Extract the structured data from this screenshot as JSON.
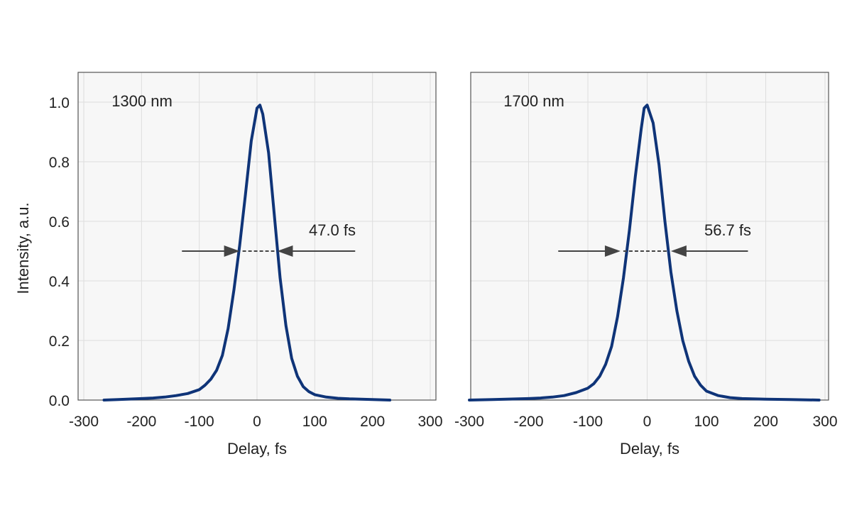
{
  "y_axis_label": "Intensity, a.u.",
  "chart_data": [
    {
      "type": "line",
      "label": "1300 nm",
      "xlabel": "Delay, fs",
      "ylabel": "Intensity, a.u.",
      "xlim": [
        -300,
        300
      ],
      "ylim": [
        0,
        1.1
      ],
      "xticks": [
        -300,
        -200,
        -100,
        0,
        100,
        200,
        300
      ],
      "xtick_labels": [
        "-300",
        "-200",
        "-100",
        "0",
        "100",
        "200",
        "300"
      ],
      "yticks": [
        0,
        0.2,
        0.4,
        0.6,
        0.8,
        1.0
      ],
      "ytick_labels": [
        "0.0",
        "0.2",
        "0.4",
        "0.6",
        "0.8",
        "1.0"
      ],
      "grid": true,
      "series": [
        {
          "color": "#0f3478",
          "x": [
            -265,
            -240,
            -200,
            -180,
            -160,
            -140,
            -120,
            -100,
            -90,
            -80,
            -70,
            -60,
            -50,
            -40,
            -30,
            -20,
            -10,
            0,
            5,
            10,
            20,
            30,
            40,
            50,
            60,
            70,
            80,
            90,
            100,
            120,
            140,
            160,
            180,
            200,
            230
          ],
          "y": [
            0.0,
            0.002,
            0.005,
            0.007,
            0.01,
            0.015,
            0.022,
            0.035,
            0.05,
            0.07,
            0.1,
            0.15,
            0.24,
            0.37,
            0.52,
            0.69,
            0.87,
            0.98,
            0.99,
            0.96,
            0.83,
            0.62,
            0.41,
            0.25,
            0.14,
            0.08,
            0.045,
            0.028,
            0.018,
            0.01,
            0.006,
            0.004,
            0.003,
            0.002,
            0.0
          ]
        }
      ],
      "annotation": {
        "text": "47.0 fs",
        "fwhm_left": -30,
        "fwhm_right": 35,
        "level": 0.5,
        "arrow_from_left": -130,
        "arrow_from_right": 170
      }
    },
    {
      "type": "line",
      "label": "1700 nm",
      "xlabel": "Delay, fs",
      "ylabel": "",
      "xlim": [
        -300,
        300
      ],
      "ylim": [
        0,
        1.1
      ],
      "xticks": [
        -300,
        -200,
        -100,
        0,
        100,
        200,
        300
      ],
      "xtick_labels": [
        "-300",
        "-200",
        "-100",
        "0",
        "100",
        "200",
        "300"
      ],
      "yticks": [
        0,
        0.2,
        0.4,
        0.6,
        0.8,
        1.0
      ],
      "ytick_labels": [],
      "grid": true,
      "series": [
        {
          "color": "#0f3478",
          "x": [
            -300,
            -260,
            -200,
            -180,
            -160,
            -140,
            -120,
            -100,
            -90,
            -80,
            -70,
            -60,
            -50,
            -40,
            -30,
            -20,
            -10,
            -5,
            0,
            10,
            20,
            30,
            40,
            50,
            60,
            70,
            80,
            90,
            100,
            120,
            140,
            160,
            200,
            240,
            290
          ],
          "y": [
            0.0,
            0.002,
            0.005,
            0.007,
            0.01,
            0.015,
            0.025,
            0.04,
            0.055,
            0.08,
            0.12,
            0.18,
            0.28,
            0.41,
            0.57,
            0.75,
            0.91,
            0.98,
            0.99,
            0.93,
            0.79,
            0.6,
            0.43,
            0.3,
            0.2,
            0.13,
            0.08,
            0.05,
            0.03,
            0.015,
            0.008,
            0.005,
            0.003,
            0.002,
            0.0
          ]
        }
      ],
      "annotation": {
        "text": "56.7 fs",
        "fwhm_left": -45,
        "fwhm_right": 40,
        "level": 0.5,
        "arrow_from_left": -150,
        "arrow_from_right": 170
      }
    }
  ]
}
